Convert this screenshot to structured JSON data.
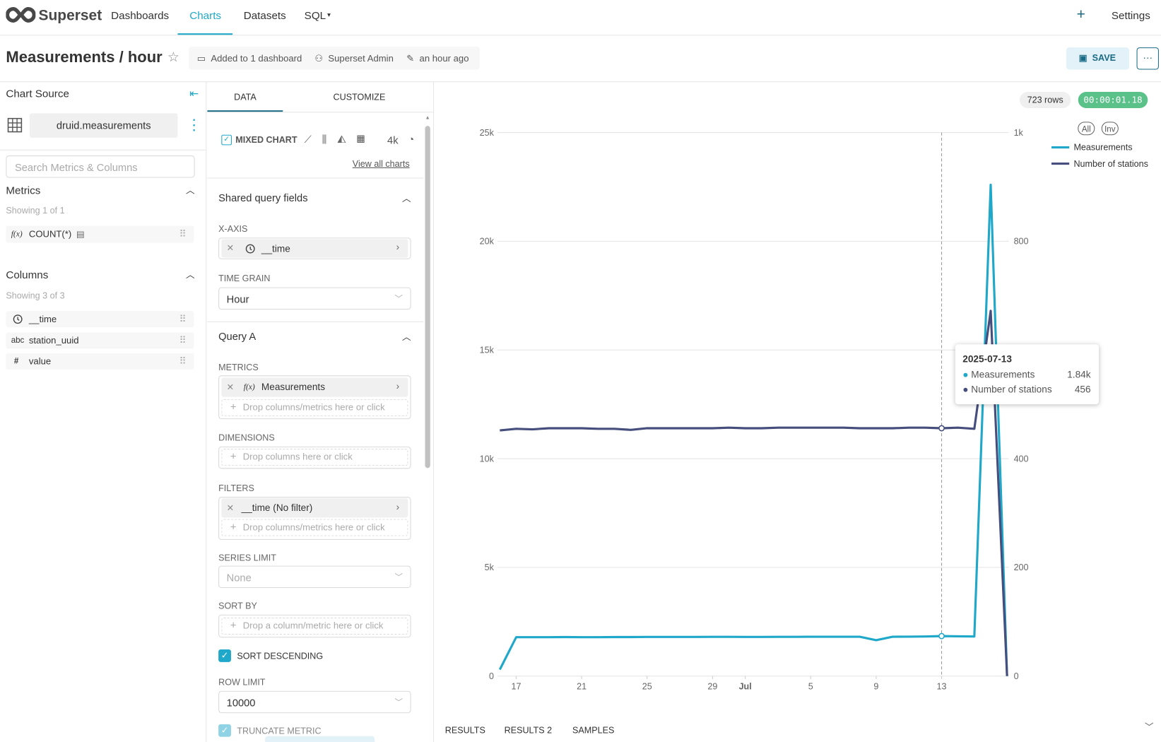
{
  "nav": {
    "brand": "Superset",
    "items": [
      "Dashboards",
      "Charts",
      "Datasets",
      "SQL"
    ],
    "add": "+",
    "settings": "Settings"
  },
  "header": {
    "title": "Measurements / hour",
    "dashboards": "Added to 1 dashboard",
    "owner": "Superset Admin",
    "modified": "an hour ago",
    "save": "SAVE",
    "more": "···"
  },
  "source": {
    "heading": "Chart Source",
    "dataset": "druid.measurements",
    "search": "Search Metrics & Columns",
    "metrics_heading": "Metrics",
    "metrics_count": "Showing 1 of 1",
    "metrics": [
      {
        "type": "f(x)",
        "name": "COUNT(*)"
      }
    ],
    "columns_heading": "Columns",
    "columns_count": "Showing 3 of 3",
    "columns": [
      {
        "name": "__time"
      },
      {
        "type": "abc",
        "name": "station_uuid"
      },
      {
        "type": "#",
        "name": "value"
      }
    ]
  },
  "controls": {
    "tabs": [
      "DATA",
      "CUSTOMIZE"
    ],
    "viz": "MIXED CHART",
    "viz_4k": "4k",
    "view_all": "View all charts",
    "shared_section": "Shared query fields",
    "x_axis_label": "X-AXIS",
    "x_axis": "__time",
    "time_grain_label": "TIME GRAIN",
    "time_grain": "Hour",
    "query_section": "Query A",
    "metrics_label": "METRICS",
    "metric": "Measurements",
    "metrics_drop": "Drop columns/metrics here or click",
    "dimensions_label": "DIMENSIONS",
    "dimensions_drop": "Drop columns here or click",
    "filters_label": "FILTERS",
    "filter": "__time (No filter)",
    "filters_drop": "Drop columns/metrics here or click",
    "series_limit_label": "SERIES LIMIT",
    "series_limit": "None",
    "sort_by_label": "SORT BY",
    "sort_by_drop": "Drop a column/metric here or click",
    "sort_descending": "SORT DESCENDING",
    "row_limit_label": "ROW LIMIT",
    "row_limit": "10000",
    "truncate_metric": "TRUNCATE METRIC"
  },
  "results": {
    "rows": "723 rows",
    "timer": "00:00:01.18",
    "tabs": [
      "RESULTS",
      "RESULTS 2",
      "SAMPLES"
    ]
  },
  "chart_data": {
    "type": "line",
    "legend_buttons": [
      "All",
      "Inv"
    ],
    "x": [
      "2025-06-16",
      "2025-06-17",
      "2025-06-18",
      "2025-06-19",
      "2025-06-20",
      "2025-06-21",
      "2025-06-22",
      "2025-06-23",
      "2025-06-24",
      "2025-06-25",
      "2025-06-26",
      "2025-06-27",
      "2025-06-28",
      "2025-06-29",
      "2025-06-30",
      "2025-07-01",
      "2025-07-02",
      "2025-07-03",
      "2025-07-04",
      "2025-07-05",
      "2025-07-06",
      "2025-07-07",
      "2025-07-08",
      "2025-07-09",
      "2025-07-10",
      "2025-07-11",
      "2025-07-12",
      "2025-07-13",
      "2025-07-14",
      "2025-07-15",
      "2025-07-16",
      "2025-07-17"
    ],
    "xlim": [
      "2025-06-16",
      "2025-07-17"
    ],
    "xticks": [
      {
        "value": "2025-06-17",
        "label": "17"
      },
      {
        "value": "2025-06-21",
        "label": "21"
      },
      {
        "value": "2025-06-25",
        "label": "25"
      },
      {
        "value": "2025-06-29",
        "label": "29"
      },
      {
        "value": "2025-07-01",
        "label": "Jul"
      },
      {
        "value": "2025-07-05",
        "label": "5"
      },
      {
        "value": "2025-07-09",
        "label": "9"
      },
      {
        "value": "2025-07-13",
        "label": "13"
      }
    ],
    "ylim": [
      0,
      25000
    ],
    "yticks": [
      0,
      {
        "value": 5000,
        "label": "5k"
      },
      {
        "value": 10000,
        "label": "10k"
      },
      {
        "value": 15000,
        "label": "15k"
      },
      {
        "value": 20000,
        "label": "20k"
      },
      {
        "value": 25000,
        "label": "25k"
      }
    ],
    "y2lim": [
      0,
      1000
    ],
    "y2ticks": [
      0,
      200,
      400,
      800,
      {
        "value": 1000,
        "label": "1k"
      }
    ],
    "grid": true,
    "series": [
      {
        "name": "Measurements",
        "color": "#1fa8c9",
        "values": [
          300,
          1790,
          1790,
          1790,
          1795,
          1790,
          1790,
          1795,
          1795,
          1800,
          1800,
          1800,
          1800,
          1805,
          1805,
          1800,
          1800,
          1805,
          1805,
          1810,
          1810,
          1810,
          1810,
          1650,
          1810,
          1815,
          1820,
          1840,
          1830,
          1820,
          22600,
          0
        ]
      },
      {
        "name": "Number of stations",
        "color": "#454e7c",
        "axis": "y2",
        "values": [
          452,
          455,
          454,
          456,
          456,
          456,
          455,
          455,
          453,
          456,
          456,
          456,
          456,
          456,
          457,
          456,
          456,
          457,
          457,
          457,
          457,
          457,
          456,
          456,
          456,
          457,
          457,
          456,
          457,
          455,
          672,
          0
        ]
      }
    ],
    "tooltip": {
      "date": "2025-07-13",
      "rows": [
        {
          "name": "Measurements",
          "value": "1.84k"
        },
        {
          "name": "Number of stations",
          "value": "456"
        }
      ]
    }
  }
}
